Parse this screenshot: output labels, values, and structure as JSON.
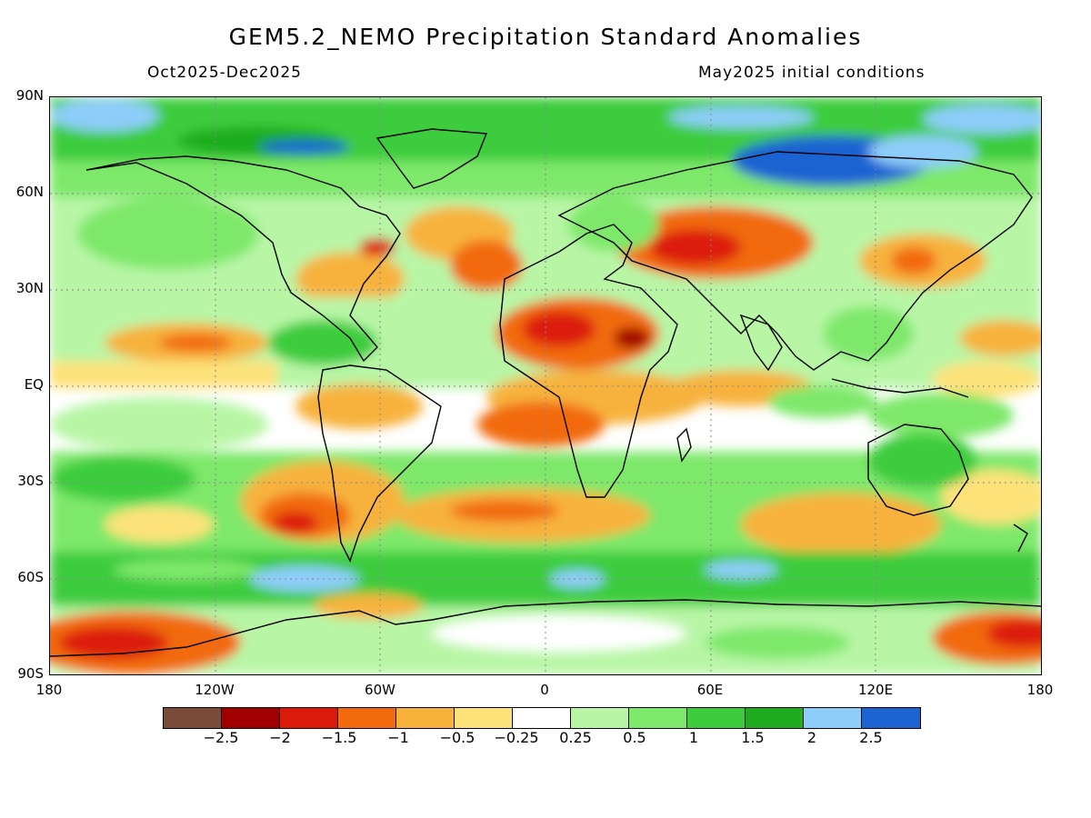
{
  "header": {
    "title": "GEM5.2_NEMO Precipitation Standard Anomalies",
    "period": "Oct2025-Dec2025",
    "initial_conditions": "May2025 initial conditions"
  },
  "axes": {
    "latitude_labels": [
      "90N",
      "60N",
      "30N",
      "EQ",
      "30S",
      "60S",
      "90S"
    ],
    "longitude_labels": [
      "180",
      "120W",
      "60W",
      "0",
      "60E",
      "120E",
      "180"
    ]
  },
  "legend": {
    "colors": [
      "#7b4b3a",
      "#a00000",
      "#dc1a0a",
      "#f26a0c",
      "#f7b23c",
      "#fde27a",
      "#ffffff",
      "#b8f6a6",
      "#7ee86a",
      "#3ccc3c",
      "#1fad1f",
      "#8ecdfa",
      "#1c64d2"
    ],
    "labels": [
      "−2.5",
      "−2",
      "−1.5",
      "−1",
      "−0.5",
      "−0.25",
      "0.25",
      "0.5",
      "1",
      "1.5",
      "2",
      "2.5"
    ]
  },
  "map": {
    "background_color": "#ffffff",
    "coastline_color": "#000000"
  }
}
